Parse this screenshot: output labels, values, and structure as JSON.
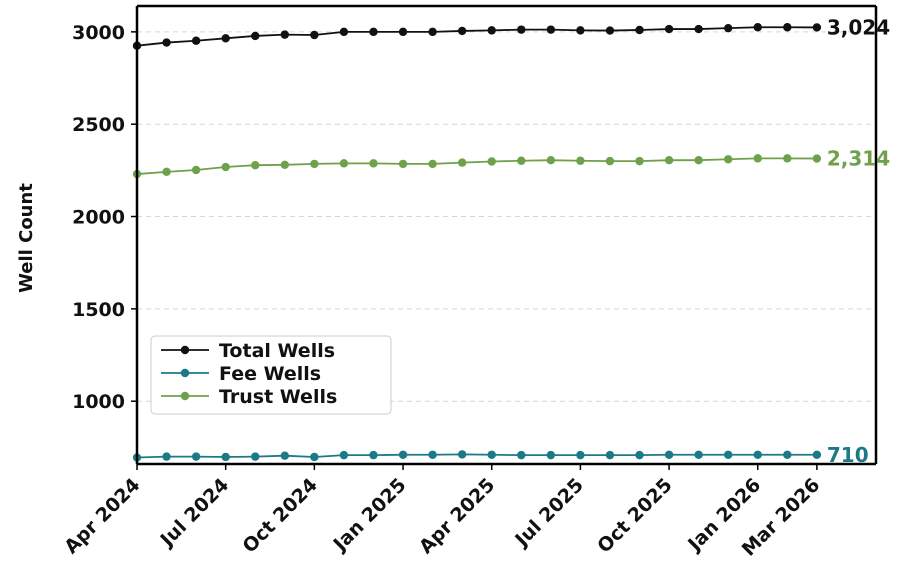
{
  "chart_data": {
    "type": "line",
    "title": "",
    "xlabel": "",
    "ylabel": "Well Count",
    "x": [
      "2024-04",
      "2024-05",
      "2024-06",
      "2024-07",
      "2024-08",
      "2024-09",
      "2024-10",
      "2024-11",
      "2024-12",
      "2025-01",
      "2025-02",
      "2025-03",
      "2025-04",
      "2025-05",
      "2025-06",
      "2025-07",
      "2025-08",
      "2025-09",
      "2025-10",
      "2025-11",
      "2025-12",
      "2026-01",
      "2026-02",
      "2026-03"
    ],
    "x_tick_labels": [
      "Apr 2024",
      "Jul 2024",
      "Oct 2024",
      "Jan 2025",
      "Apr 2025",
      "Jul 2025",
      "Oct 2025",
      "Jan 2026",
      "Mar 2026"
    ],
    "x_tick_positions": [
      "2024-04",
      "2024-07",
      "2024-10",
      "2025-01",
      "2025-04",
      "2025-07",
      "2025-10",
      "2026-01",
      "2026-03"
    ],
    "y_ticks": [
      1000,
      1500,
      2000,
      2500,
      3000
    ],
    "ylim": [
      660,
      3140
    ],
    "grid": "horizontal-dashed",
    "legend_position": "lower-left",
    "series": [
      {
        "name": "Total Wells",
        "color": "#111111",
        "values": [
          2925,
          2942,
          2952,
          2965,
          2978,
          2985,
          2983,
          3000,
          3000,
          3000,
          3000,
          3005,
          3008,
          3012,
          3012,
          3008,
          3007,
          3010,
          3015,
          3015,
          3020,
          3025,
          3025,
          3024
        ],
        "end_label": "3,024"
      },
      {
        "name": "Fee Wells",
        "color": "#1b7a85",
        "values": [
          695,
          700,
          700,
          698,
          700,
          705,
          698,
          708,
          708,
          710,
          710,
          712,
          710,
          708,
          708,
          708,
          708,
          708,
          710,
          710,
          710,
          710,
          710,
          710
        ],
        "end_label": "710"
      },
      {
        "name": "Trust Wells",
        "color": "#6fa14b",
        "values": [
          2230,
          2242,
          2252,
          2268,
          2278,
          2280,
          2285,
          2288,
          2288,
          2285,
          2285,
          2292,
          2298,
          2302,
          2305,
          2302,
          2300,
          2300,
          2305,
          2305,
          2310,
          2315,
          2315,
          2314
        ],
        "end_label": "2,314"
      }
    ]
  }
}
